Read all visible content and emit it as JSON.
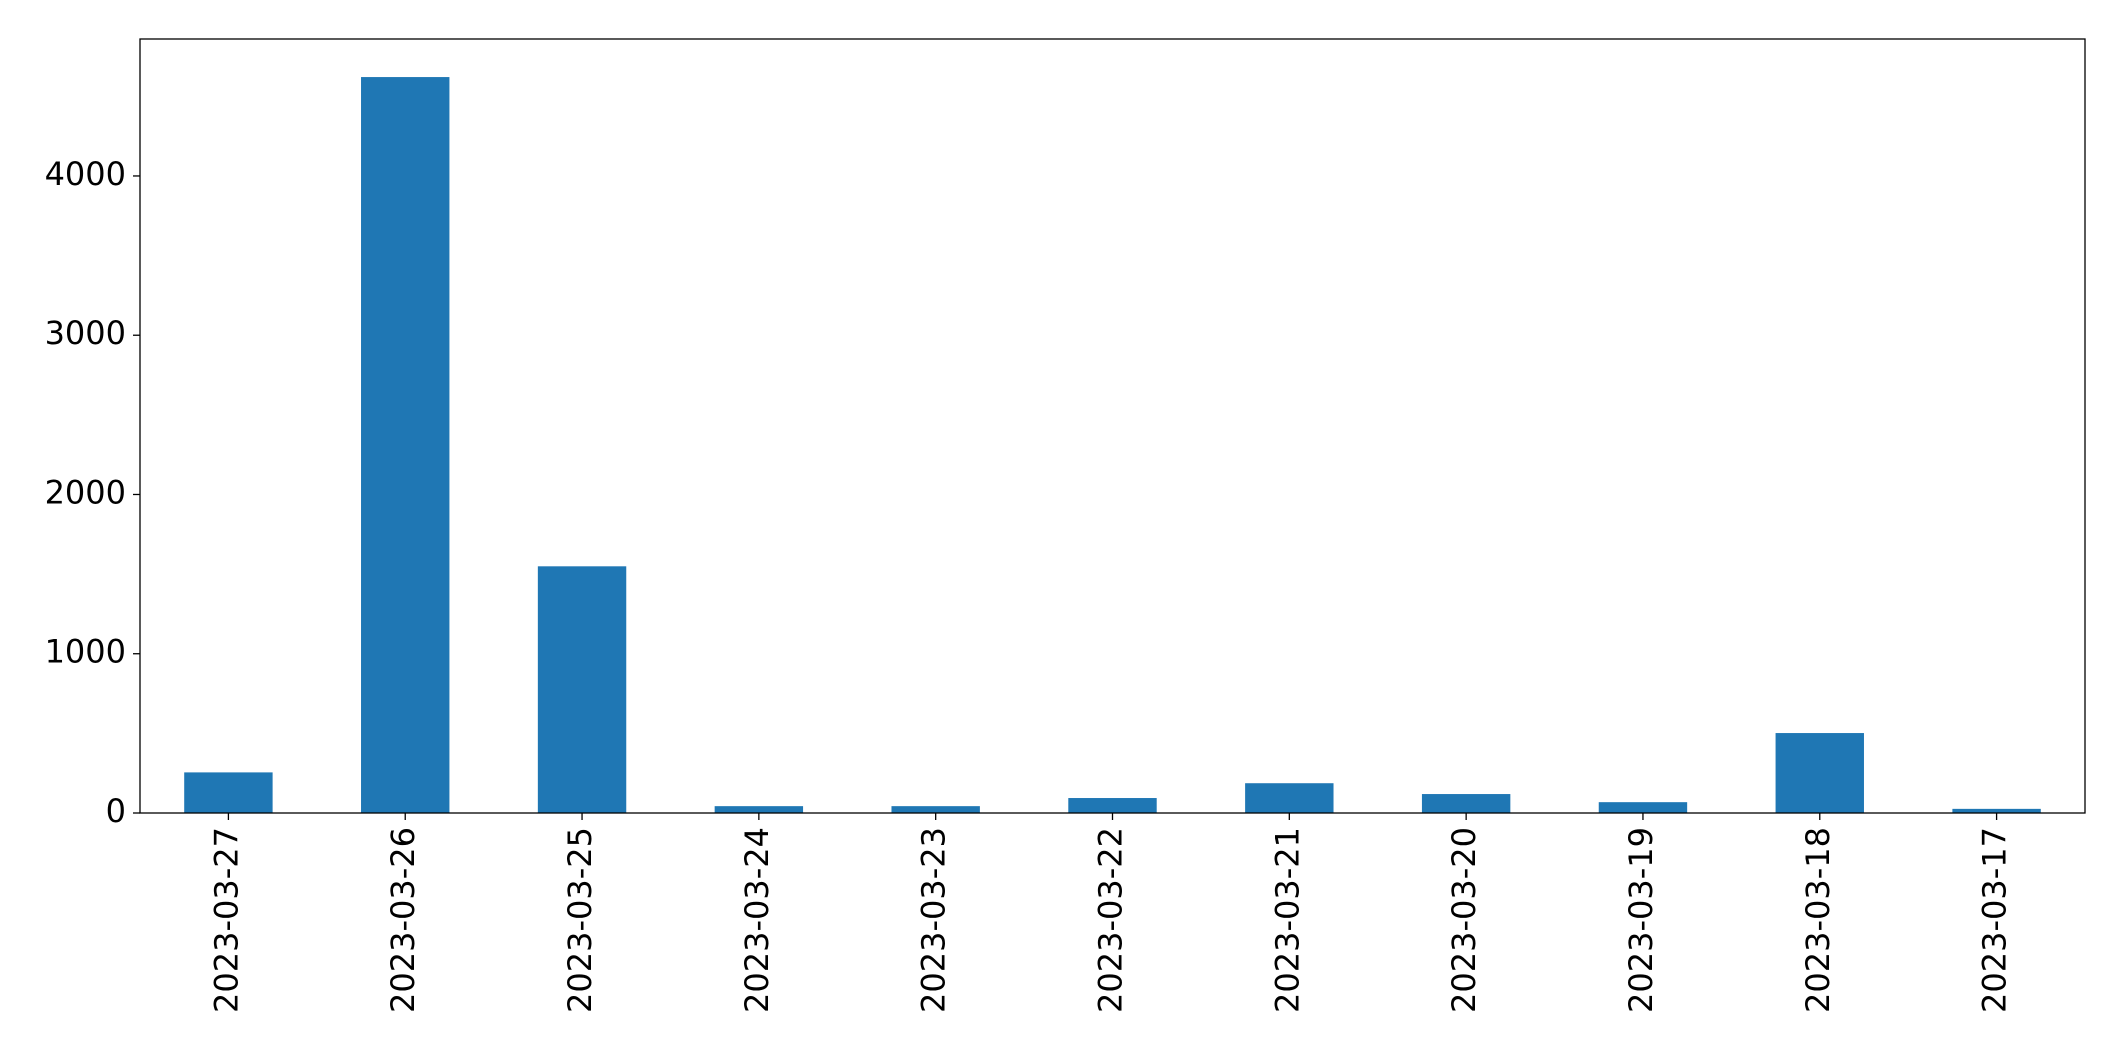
{
  "chart_data": {
    "type": "bar",
    "categories": [
      "2023-03-27",
      "2023-03-26",
      "2023-03-25",
      "2023-03-24",
      "2023-03-23",
      "2023-03-22",
      "2023-03-21",
      "2023-03-20",
      "2023-03-19",
      "2023-03-18",
      "2023-03-17"
    ],
    "values": [
      255,
      4621,
      1549,
      43,
      43,
      94,
      187,
      119,
      68,
      502,
      26
    ],
    "color": "#1f77b4",
    "ylim": [
      0,
      4860
    ],
    "yticks": [
      0,
      1000,
      2000,
      3000,
      4000
    ],
    "grid": false
  }
}
